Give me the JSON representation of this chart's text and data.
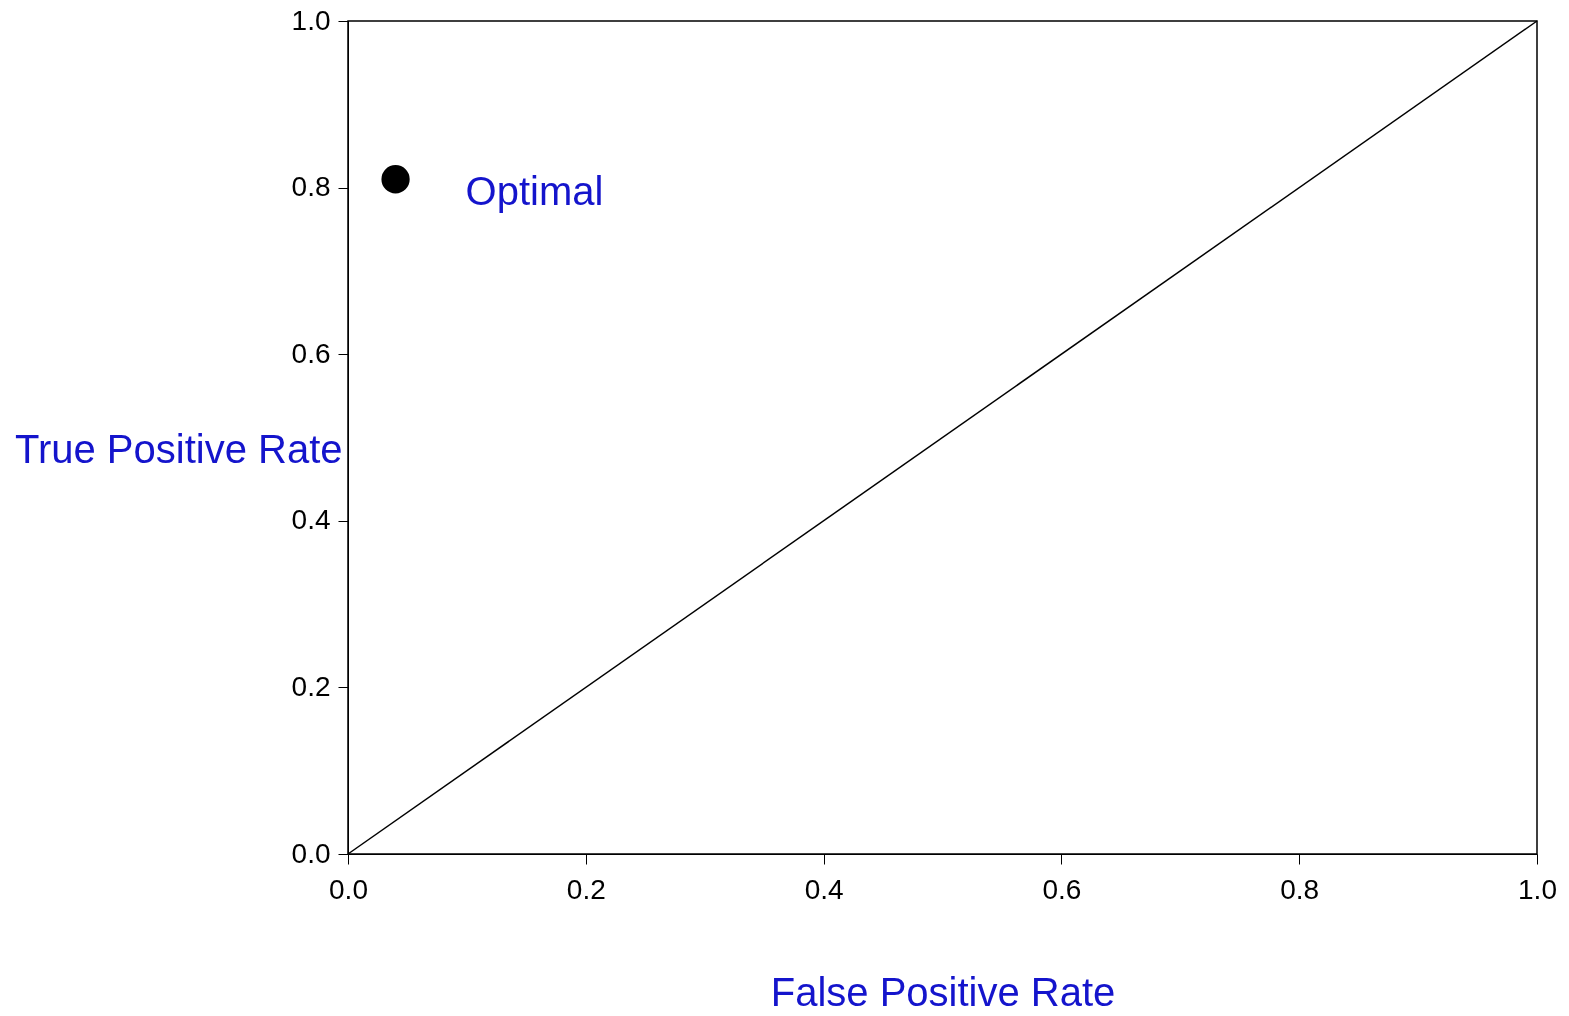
{
  "chart_data": {
    "type": "scatter",
    "xlabel": "False Positive Rate",
    "ylabel": "True Positive Rate",
    "series": [
      {
        "type": "scatter",
        "color": "#000000",
        "x": [
          0.04
        ],
        "values": [
          0.81
        ],
        "marker": "circle"
      },
      {
        "type": "line",
        "color": "#000000",
        "x": [
          0,
          1
        ],
        "values": [
          0,
          1
        ],
        "line_style": "solid",
        "marker": "none"
      }
    ],
    "annotations": [
      {
        "text": "Optimal",
        "x": 0.04,
        "y": 0.81
      }
    ],
    "xlim": [
      0,
      1
    ],
    "ylim": [
      0,
      1
    ],
    "xticks": [
      {
        "value": 0,
        "label": "0.0"
      },
      {
        "value": 0.2,
        "label": "0.2"
      },
      {
        "value": 0.4,
        "label": "0.4"
      },
      {
        "value": 0.6,
        "label": "0.6"
      },
      {
        "value": 0.8,
        "label": "0.8"
      },
      {
        "value": 1,
        "label": "1.0"
      }
    ],
    "yticks": [
      {
        "value": 0,
        "label": "0.0"
      },
      {
        "value": 0.2,
        "label": "0.2"
      },
      {
        "value": 0.4,
        "label": "0.4"
      },
      {
        "value": 0.6,
        "label": "0.6"
      },
      {
        "value": 0.8,
        "label": "0.8"
      },
      {
        "value": 1,
        "label": "1.0"
      }
    ],
    "grid": false
  }
}
